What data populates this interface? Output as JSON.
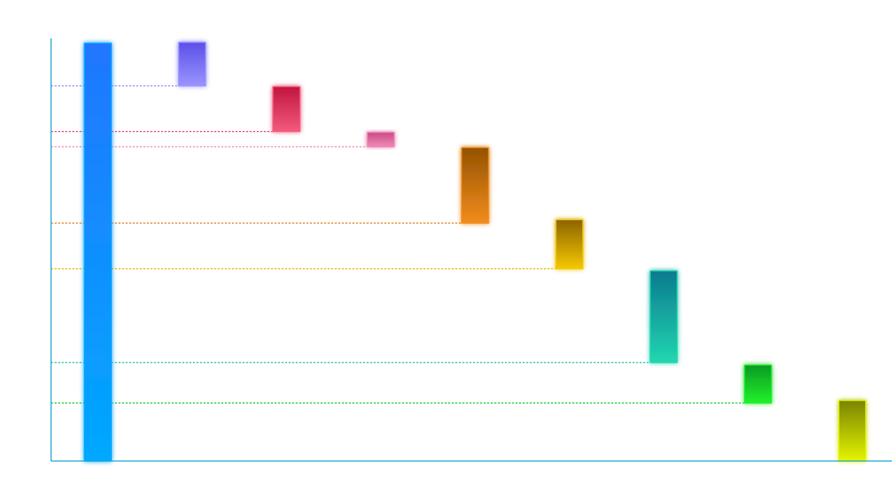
{
  "chart_data": {
    "type": "waterfall",
    "title": "",
    "xlabel": "",
    "ylabel": "",
    "ylim": [
      0,
      100
    ],
    "grid": false,
    "legend": "none",
    "axis_color": "#1aa7d4",
    "steps": [
      {
        "kind": "total",
        "start": 0,
        "end": 98,
        "color_top": "#2176ff",
        "color_bottom": "#00a8ff"
      },
      {
        "kind": "delta",
        "start": 88,
        "end": 98.2,
        "color_top": "#5b4fe8",
        "color_bottom": "#9b94ff"
      },
      {
        "kind": "delta",
        "start": 77.3,
        "end": 87.8,
        "color_top": "#c2153f",
        "color_bottom": "#f25a7d"
      },
      {
        "kind": "delta",
        "start": 73.7,
        "end": 77.1,
        "color_top": "#c94a86",
        "color_bottom": "#f08ab6"
      },
      {
        "kind": "delta",
        "start": 55.8,
        "end": 73.5,
        "color_top": "#945200",
        "color_bottom": "#f28c1c"
      },
      {
        "kind": "delta",
        "start": 45.1,
        "end": 56.6,
        "color_top": "#8c6400",
        "color_bottom": "#f5c800"
      },
      {
        "kind": "delta",
        "start": 23.1,
        "end": 44.6,
        "color_top": "#0a7a8f",
        "color_bottom": "#22d6b0"
      },
      {
        "kind": "delta",
        "start": 13.6,
        "end": 22.5,
        "color_top": "#0a9a24",
        "color_bottom": "#22f02a"
      },
      {
        "kind": "delta",
        "start": 0,
        "end": 14.2,
        "color_top": "#7a8400",
        "color_bottom": "#e4f500"
      }
    ],
    "guides": [
      {
        "value": 88,
        "color": "#9d94ee"
      },
      {
        "value": 77.3,
        "color": "#e0406a"
      },
      {
        "value": 73.7,
        "color": "#ef88b4"
      },
      {
        "value": 55.8,
        "color": "#e07d10"
      },
      {
        "value": 45.1,
        "color": "#e8b800"
      },
      {
        "value": 23.1,
        "color": "#1ec0a8"
      },
      {
        "value": 13.6,
        "color": "#22cc30"
      }
    ]
  }
}
